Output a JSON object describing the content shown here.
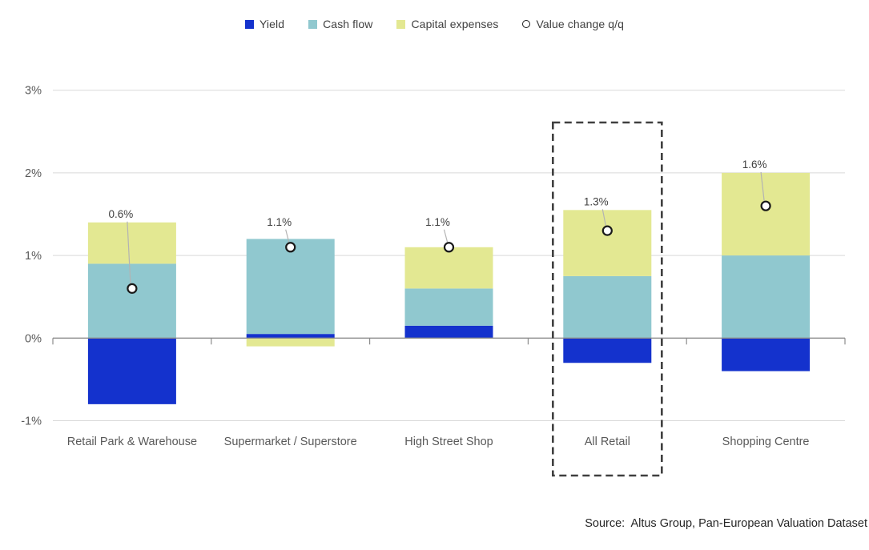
{
  "legend": {
    "items": [
      {
        "label": "Yield",
        "swatch": "square",
        "color": "#1432cd"
      },
      {
        "label": "Cash flow",
        "swatch": "square",
        "color": "#90c8cf"
      },
      {
        "label": "Capital expenses",
        "swatch": "square",
        "color": "#e3e892"
      },
      {
        "label": "Value change q/q",
        "swatch": "circle",
        "color": "#1a1a1a"
      }
    ]
  },
  "chart_data": {
    "type": "bar",
    "stacked": true,
    "unit": "%",
    "categories": [
      "Retail Park & Warehouse",
      "Supermarket / Superstore",
      "High Street Shop",
      "All Retail",
      "Shopping Centre"
    ],
    "series": [
      {
        "name": "Yield",
        "color": "#1432cd",
        "values": [
          -0.8,
          0.05,
          0.15,
          -0.3,
          -0.4
        ]
      },
      {
        "name": "Cash flow",
        "color": "#90c8cf",
        "values": [
          0.9,
          1.15,
          0.45,
          0.75,
          1.0
        ]
      },
      {
        "name": "Capital expenses",
        "color": "#e3e892",
        "values": [
          0.5,
          -0.1,
          0.5,
          0.8,
          1.0
        ]
      }
    ],
    "markers": {
      "name": "Value change q/q",
      "values": [
        0.6,
        1.1,
        1.1,
        1.3,
        1.6
      ],
      "labels": [
        "0.6%",
        "1.1%",
        "1.1%",
        "1.3%",
        "1.6%"
      ]
    },
    "ylim": [
      -1,
      3
    ],
    "ytick_values": [
      3,
      2,
      1,
      0,
      -1
    ],
    "ytick_labels": [
      "3%",
      "2%",
      "1%",
      "0%",
      "-1%"
    ],
    "grid": true,
    "legend_position": "top",
    "highlighted_category": "All Retail"
  },
  "colors": {
    "grid": "#d9d9d9",
    "axis": "#8c8c8c",
    "value_label_text": "#404040",
    "axis_label_text": "#595959",
    "marker_stroke": "#1a1a1a",
    "marker_fill": "#ffffff",
    "leader_line": "#b3b3b3",
    "highlight_box": "#404040"
  },
  "source": {
    "text": "Source:  Altus Group, Pan-European Valuation Dataset"
  }
}
